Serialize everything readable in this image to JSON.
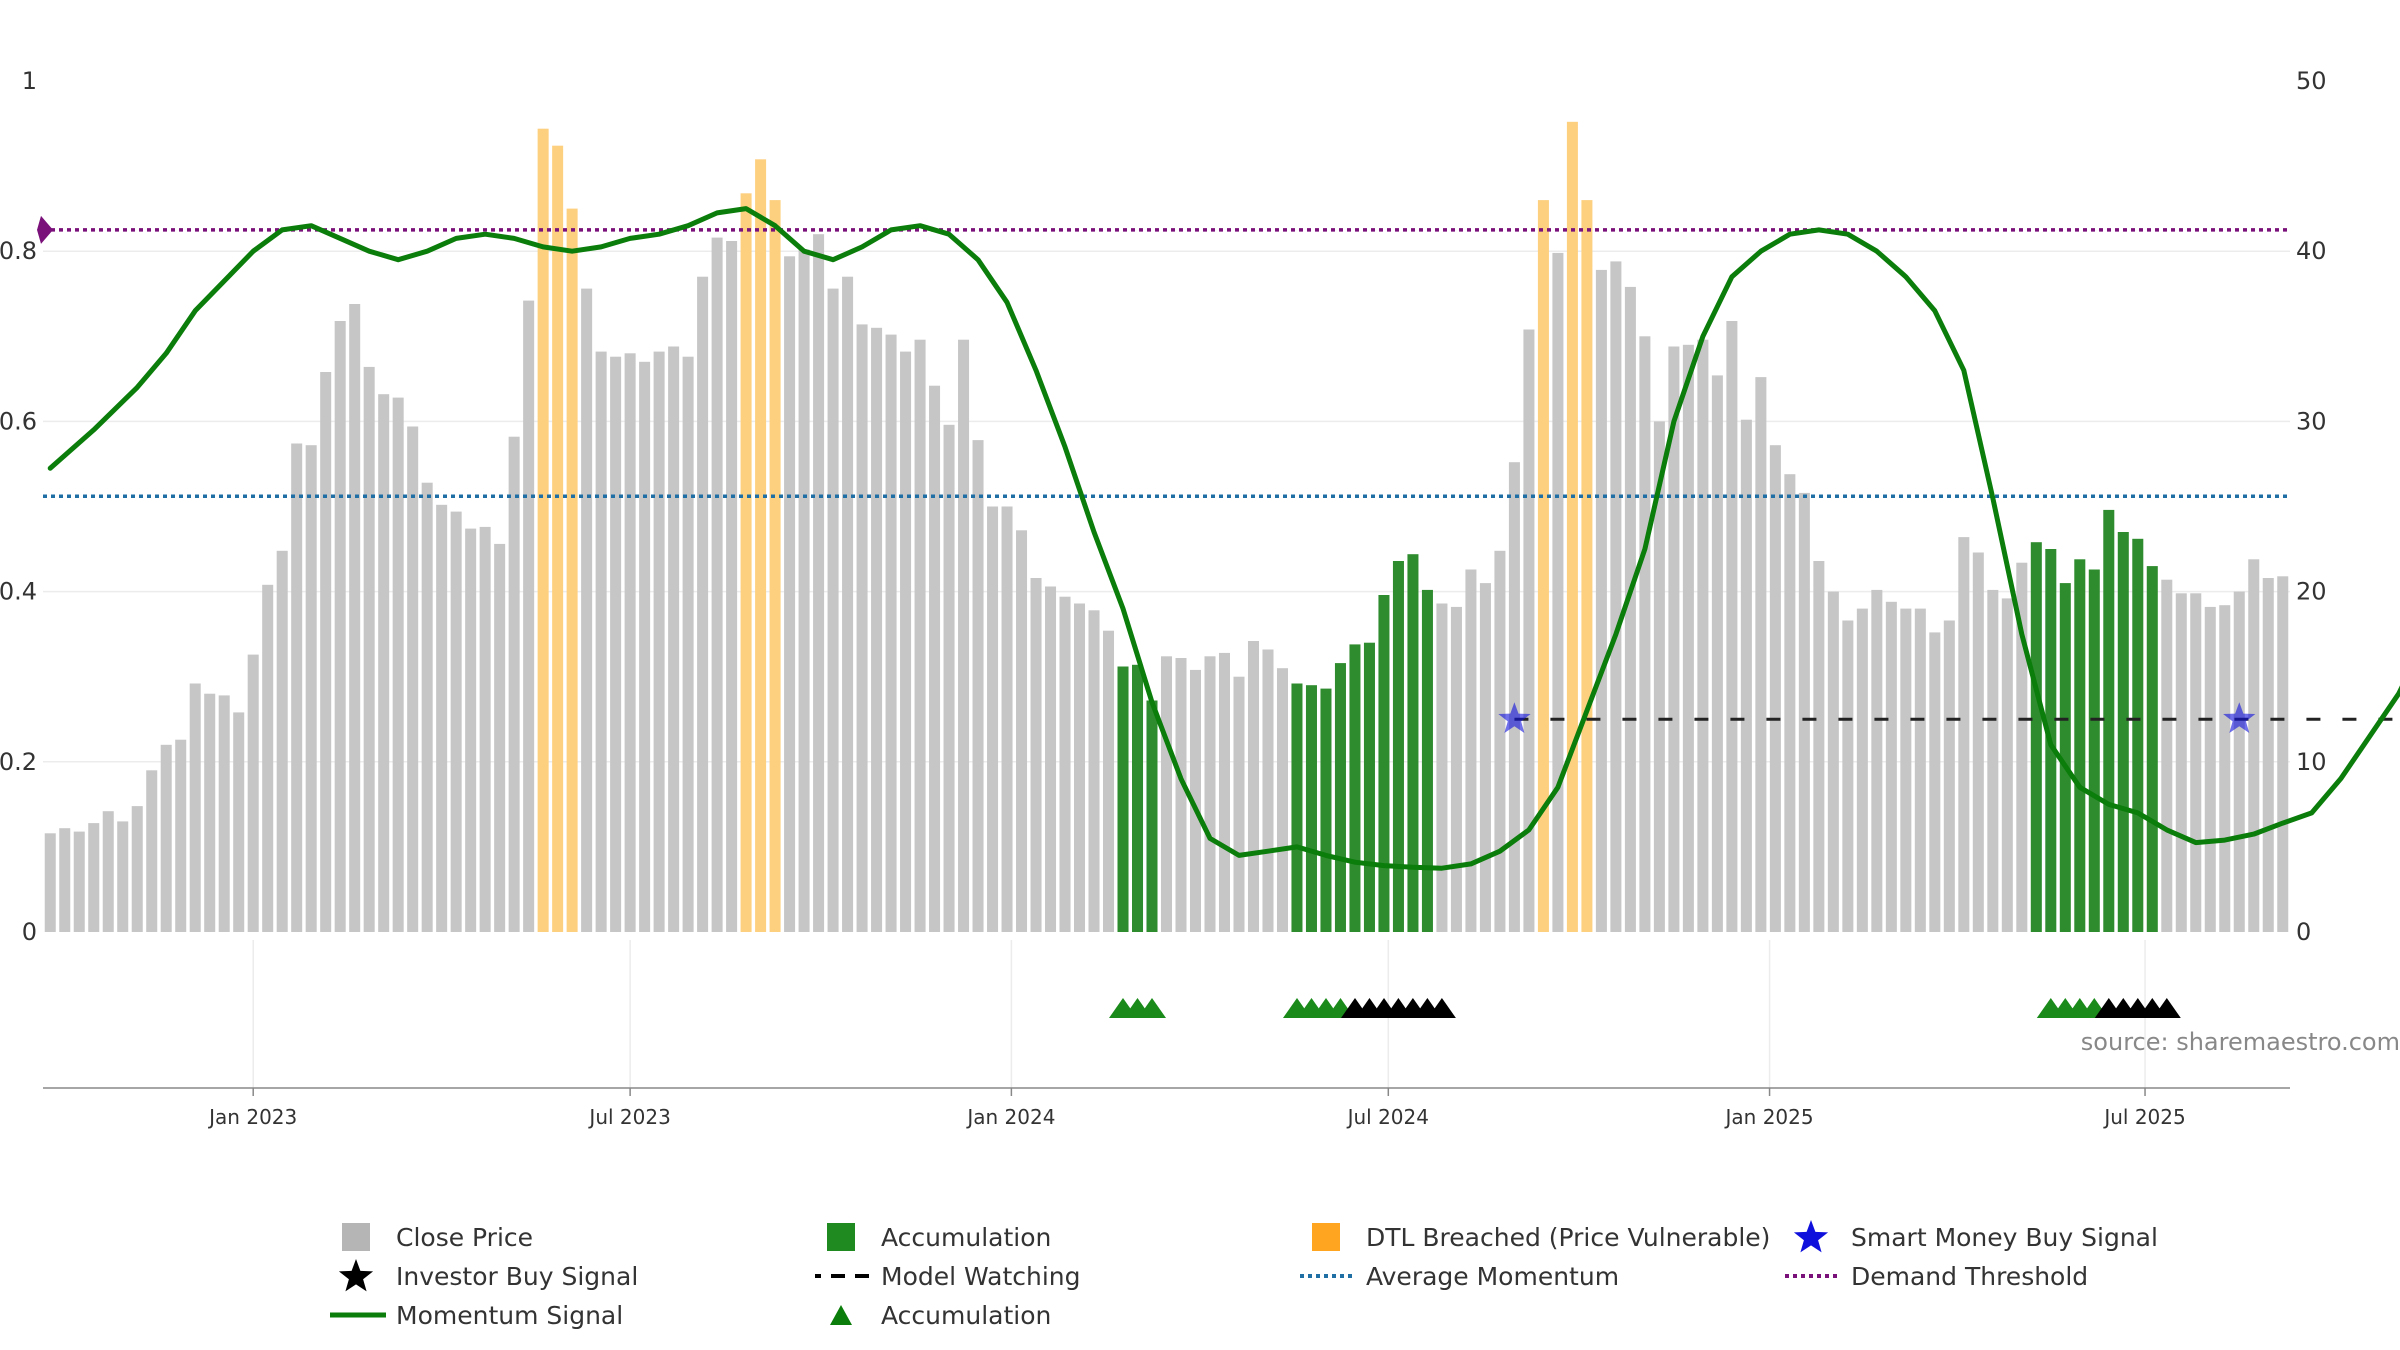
{
  "chart_data": {
    "type": "bar",
    "left_axis": {
      "ticks": [
        "0",
        "0.2",
        "0.4",
        "0.6",
        "0.8",
        "1"
      ],
      "range": [
        0,
        1
      ]
    },
    "right_axis": {
      "ticks": [
        "0",
        "10",
        "20",
        "30",
        "40",
        "50"
      ],
      "range": [
        0,
        50
      ]
    },
    "x_ticks": [
      {
        "label": "Jan 2023",
        "week": 14
      },
      {
        "label": "Jul 2023",
        "week": 40
      },
      {
        "label": "Jan 2024",
        "week": 66.3
      },
      {
        "label": "Jul 2024",
        "week": 92.3
      },
      {
        "label": "Jan 2025",
        "week": 118.6
      },
      {
        "label": "Jul 2025",
        "week": 144.5
      }
    ],
    "price_bars": [
      [
        5.8,
        "g"
      ],
      [
        6.1,
        "g"
      ],
      [
        5.9,
        "g"
      ],
      [
        6.4,
        "g"
      ],
      [
        7.1,
        "g"
      ],
      [
        6.5,
        "g"
      ],
      [
        7.4,
        "g"
      ],
      [
        9.5,
        "g"
      ],
      [
        11.0,
        "g"
      ],
      [
        11.3,
        "g"
      ],
      [
        14.6,
        "g"
      ],
      [
        14.0,
        "g"
      ],
      [
        13.9,
        "g"
      ],
      [
        12.9,
        "g"
      ],
      [
        16.3,
        "g"
      ],
      [
        20.4,
        "g"
      ],
      [
        22.4,
        "g"
      ],
      [
        28.7,
        "g"
      ],
      [
        28.6,
        "g"
      ],
      [
        32.9,
        "g"
      ],
      [
        35.9,
        "g"
      ],
      [
        36.9,
        "g"
      ],
      [
        33.2,
        "g"
      ],
      [
        31.6,
        "g"
      ],
      [
        31.4,
        "g"
      ],
      [
        29.7,
        "g"
      ],
      [
        26.4,
        "g"
      ],
      [
        25.1,
        "g"
      ],
      [
        24.7,
        "g"
      ],
      [
        23.7,
        "g"
      ],
      [
        23.8,
        "g"
      ],
      [
        22.8,
        "g"
      ],
      [
        29.1,
        "g"
      ],
      [
        37.1,
        "g"
      ],
      [
        47.2,
        "o"
      ],
      [
        46.2,
        "o"
      ],
      [
        42.5,
        "o"
      ],
      [
        37.8,
        "g"
      ],
      [
        34.1,
        "g"
      ],
      [
        33.8,
        "g"
      ],
      [
        34.0,
        "g"
      ],
      [
        33.5,
        "g"
      ],
      [
        34.1,
        "g"
      ],
      [
        34.4,
        "g"
      ],
      [
        33.8,
        "g"
      ],
      [
        38.5,
        "g"
      ],
      [
        40.8,
        "g"
      ],
      [
        40.6,
        "g"
      ],
      [
        43.4,
        "o"
      ],
      [
        45.4,
        "o"
      ],
      [
        43.0,
        "o"
      ],
      [
        39.7,
        "g"
      ],
      [
        40.1,
        "g"
      ],
      [
        41.0,
        "g"
      ],
      [
        37.8,
        "g"
      ],
      [
        38.5,
        "g"
      ],
      [
        35.7,
        "g"
      ],
      [
        35.5,
        "g"
      ],
      [
        35.1,
        "g"
      ],
      [
        34.1,
        "g"
      ],
      [
        34.8,
        "g"
      ],
      [
        32.1,
        "g"
      ],
      [
        29.8,
        "g"
      ],
      [
        34.8,
        "g"
      ],
      [
        28.9,
        "g"
      ],
      [
        25.0,
        "g"
      ],
      [
        25.0,
        "g"
      ],
      [
        23.6,
        "g"
      ],
      [
        20.8,
        "g"
      ],
      [
        20.3,
        "g"
      ],
      [
        19.7,
        "g"
      ],
      [
        19.3,
        "g"
      ],
      [
        18.9,
        "g"
      ],
      [
        17.7,
        "g"
      ],
      [
        15.6,
        "a"
      ],
      [
        15.7,
        "a"
      ],
      [
        13.6,
        "a"
      ],
      [
        16.2,
        "g"
      ],
      [
        16.1,
        "g"
      ],
      [
        15.4,
        "g"
      ],
      [
        16.2,
        "g"
      ],
      [
        16.4,
        "g"
      ],
      [
        15.0,
        "g"
      ],
      [
        17.1,
        "g"
      ],
      [
        16.6,
        "g"
      ],
      [
        15.5,
        "g"
      ],
      [
        14.6,
        "a"
      ],
      [
        14.5,
        "a"
      ],
      [
        14.3,
        "a"
      ],
      [
        15.8,
        "a"
      ],
      [
        16.9,
        "a"
      ],
      [
        17.0,
        "a"
      ],
      [
        19.8,
        "a"
      ],
      [
        21.8,
        "a"
      ],
      [
        22.2,
        "a"
      ],
      [
        20.1,
        "a"
      ],
      [
        19.3,
        "g"
      ],
      [
        19.1,
        "g"
      ],
      [
        21.3,
        "g"
      ],
      [
        20.5,
        "g"
      ],
      [
        22.4,
        "g"
      ],
      [
        27.6,
        "g"
      ],
      [
        35.4,
        "g"
      ],
      [
        43.0,
        "o"
      ],
      [
        39.9,
        "g"
      ],
      [
        47.6,
        "o"
      ],
      [
        43.0,
        "o"
      ],
      [
        38.9,
        "g"
      ],
      [
        39.4,
        "g"
      ],
      [
        37.9,
        "g"
      ],
      [
        35.0,
        "g"
      ],
      [
        30.0,
        "g"
      ],
      [
        34.4,
        "g"
      ],
      [
        34.5,
        "g"
      ],
      [
        34.8,
        "g"
      ],
      [
        32.7,
        "g"
      ],
      [
        35.9,
        "g"
      ],
      [
        30.1,
        "g"
      ],
      [
        32.6,
        "g"
      ],
      [
        28.6,
        "g"
      ],
      [
        26.9,
        "g"
      ],
      [
        25.8,
        "g"
      ],
      [
        21.8,
        "g"
      ],
      [
        20.0,
        "g"
      ],
      [
        18.3,
        "g"
      ],
      [
        19.0,
        "g"
      ],
      [
        20.1,
        "g"
      ],
      [
        19.4,
        "g"
      ],
      [
        19.0,
        "g"
      ],
      [
        19.0,
        "g"
      ],
      [
        17.6,
        "g"
      ],
      [
        18.3,
        "g"
      ],
      [
        23.2,
        "g"
      ],
      [
        22.3,
        "g"
      ],
      [
        20.1,
        "g"
      ],
      [
        19.6,
        "g"
      ],
      [
        21.7,
        "g"
      ],
      [
        22.9,
        "a"
      ],
      [
        22.5,
        "a"
      ],
      [
        20.5,
        "a"
      ],
      [
        21.9,
        "a"
      ],
      [
        21.3,
        "a"
      ],
      [
        24.8,
        "a"
      ],
      [
        23.5,
        "a"
      ],
      [
        23.1,
        "a"
      ],
      [
        21.5,
        "a"
      ],
      [
        20.7,
        "g"
      ],
      [
        19.9,
        "g"
      ],
      [
        19.9,
        "g"
      ],
      [
        19.1,
        "g"
      ],
      [
        19.2,
        "g"
      ],
      [
        20.0,
        "g"
      ],
      [
        21.9,
        "g"
      ],
      [
        20.8,
        "g"
      ],
      [
        20.9,
        "g"
      ]
    ],
    "momentum_signal": [
      [
        0,
        0.545
      ],
      [
        3,
        0.59
      ],
      [
        6,
        0.64
      ],
      [
        8,
        0.68
      ],
      [
        10,
        0.73
      ],
      [
        12,
        0.765
      ],
      [
        14,
        0.8
      ],
      [
        16,
        0.825
      ],
      [
        18,
        0.83
      ],
      [
        20,
        0.815
      ],
      [
        22,
        0.8
      ],
      [
        24,
        0.79
      ],
      [
        26,
        0.8
      ],
      [
        28,
        0.815
      ],
      [
        30,
        0.82
      ],
      [
        32,
        0.815
      ],
      [
        34,
        0.805
      ],
      [
        36,
        0.8
      ],
      [
        38,
        0.805
      ],
      [
        40,
        0.815
      ],
      [
        42,
        0.82
      ],
      [
        44,
        0.83
      ],
      [
        46,
        0.845
      ],
      [
        48,
        0.85
      ],
      [
        50,
        0.83
      ],
      [
        52,
        0.8
      ],
      [
        54,
        0.79
      ],
      [
        56,
        0.805
      ],
      [
        58,
        0.825
      ],
      [
        60,
        0.83
      ],
      [
        62,
        0.82
      ],
      [
        64,
        0.79
      ],
      [
        66,
        0.74
      ],
      [
        68,
        0.66
      ],
      [
        70,
        0.57
      ],
      [
        72,
        0.47
      ],
      [
        74,
        0.38
      ],
      [
        76,
        0.27
      ],
      [
        78,
        0.18
      ],
      [
        80,
        0.11
      ],
      [
        82,
        0.09
      ],
      [
        84,
        0.095
      ],
      [
        86,
        0.1
      ],
      [
        88,
        0.09
      ],
      [
        90,
        0.082
      ],
      [
        92,
        0.078
      ],
      [
        94,
        0.076
      ],
      [
        96,
        0.075
      ],
      [
        98,
        0.08
      ],
      [
        100,
        0.095
      ],
      [
        102,
        0.12
      ],
      [
        104,
        0.17
      ],
      [
        106,
        0.26
      ],
      [
        108,
        0.35
      ],
      [
        110,
        0.45
      ],
      [
        112,
        0.6
      ],
      [
        114,
        0.7
      ],
      [
        116,
        0.77
      ],
      [
        118,
        0.8
      ],
      [
        120,
        0.82
      ],
      [
        122,
        0.825
      ],
      [
        124,
        0.82
      ],
      [
        126,
        0.8
      ],
      [
        128,
        0.77
      ],
      [
        130,
        0.73
      ],
      [
        132,
        0.66
      ],
      [
        134,
        0.51
      ],
      [
        136,
        0.35
      ],
      [
        138,
        0.22
      ],
      [
        140,
        0.17
      ],
      [
        142,
        0.15
      ],
      [
        144,
        0.14
      ],
      [
        146,
        0.12
      ],
      [
        148,
        0.105
      ],
      [
        150,
        0.108
      ],
      [
        152,
        0.115
      ],
      [
        154,
        0.128
      ],
      [
        156,
        0.14
      ],
      [
        158,
        0.18
      ],
      [
        160,
        0.23
      ],
      [
        162,
        0.28
      ],
      [
        164,
        0.35
      ],
      [
        165,
        0.37
      ],
      [
        166,
        0.36
      ],
      [
        167,
        0.43
      ],
      [
        168,
        0.44
      ],
      [
        169.5,
        0.25
      ]
    ],
    "average_momentum": 0.512,
    "demand_threshold": 0.825,
    "model_watching_level": 0.25,
    "model_watching_weeks": [
      101,
      166
    ],
    "smart_money_buy_signals": [
      {
        "week": 101,
        "value": 0.25
      },
      {
        "week": 151,
        "value": 0.25
      }
    ],
    "accumulation_triangles": [
      74,
      75,
      76,
      86,
      87,
      88,
      89,
      138,
      139,
      140,
      141
    ],
    "investor_buy_signals": [
      90,
      91,
      92,
      93,
      94,
      95,
      96,
      142,
      143,
      144,
      145,
      146
    ],
    "colors": {
      "close_price": "#c6c6c6",
      "accumulation": "#2e8b2e",
      "dtl_breached": "#fdd080",
      "momentum": "#0a7d0a",
      "average_momentum": "#1f6fa5",
      "demand_threshold": "#7a117a",
      "model_watching": "#222222",
      "smart_money": "#1010dd",
      "investor": "#000000",
      "triangle_green": "#1a8a1a"
    }
  },
  "source": "source: sharemaestro.com",
  "legend": [
    {
      "label": "Close Price",
      "symbol": "square",
      "color": "#b5b5b5"
    },
    {
      "label": "Accumulation",
      "symbol": "square",
      "color": "#1f8a1f"
    },
    {
      "label": "DTL Breached (Price Vulnerable)",
      "symbol": "square",
      "color": "#ffa51f"
    },
    {
      "label": "Smart Money Buy Signal",
      "symbol": "star",
      "color": "#1010dd"
    },
    {
      "label": "Investor Buy Signal",
      "symbol": "star",
      "color": "#000000"
    },
    {
      "label": "Model Watching",
      "symbol": "dash",
      "color": "#000000"
    },
    {
      "label": "Average Momentum",
      "symbol": "dot",
      "color": "#1f6fa5"
    },
    {
      "label": "Demand Threshold",
      "symbol": "dot",
      "color": "#7a117a"
    },
    {
      "label": "Momentum Signal",
      "symbol": "line",
      "color": "#0a7d0a"
    },
    {
      "label": "Accumulation",
      "symbol": "triangle",
      "color": "#0a7d0a"
    }
  ]
}
